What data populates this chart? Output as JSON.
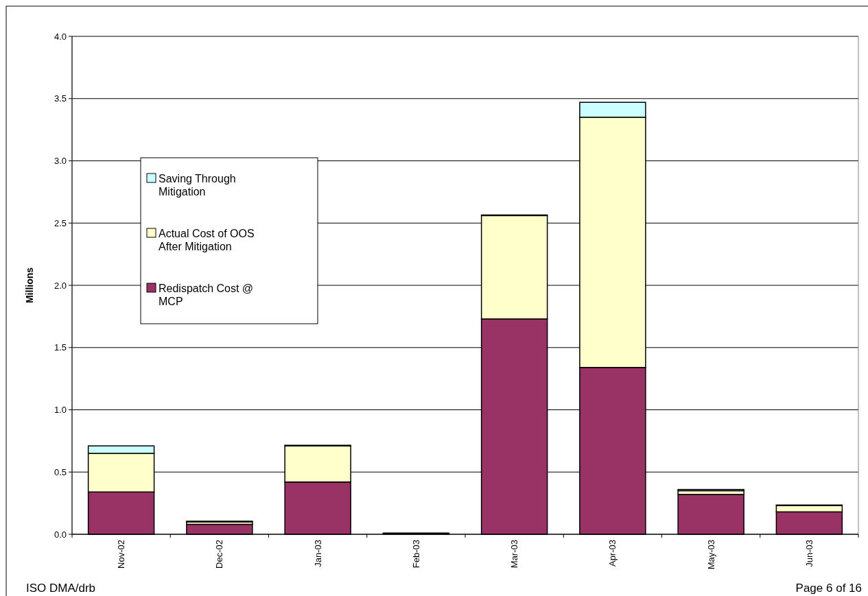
{
  "chart_data": {
    "type": "bar",
    "stacked": true,
    "ylabel": "Millions",
    "categories": [
      "Nov-02",
      "Dec-02",
      "Jan-03",
      "Feb-03",
      "Mar-03",
      "Apr-03",
      "May-03",
      "Jun-03"
    ],
    "series": [
      {
        "name": "Redispatch Cost @ MCP",
        "color": "#993366",
        "values": [
          0.34,
          0.08,
          0.42,
          0.01,
          1.73,
          1.34,
          0.32,
          0.18
        ]
      },
      {
        "name": "Actual Cost of OOS After Mitigation",
        "color": "#ffffcc",
        "values": [
          0.31,
          0.02,
          0.29,
          0,
          0.83,
          2.01,
          0.03,
          0.05
        ]
      },
      {
        "name": "Saving Through Mitigation",
        "color": "#ccffff",
        "values": [
          0.06,
          0.005,
          0.005,
          0,
          0.005,
          0.12,
          0.01,
          0.005
        ]
      }
    ],
    "ylim": [
      0,
      4
    ],
    "yticks": [
      {
        "value": 0,
        "label": "0.0"
      },
      {
        "value": 0.5,
        "label": "0.5"
      },
      {
        "value": 1,
        "label": "1.0"
      },
      {
        "value": 1.5,
        "label": "1.5"
      },
      {
        "value": 2,
        "label": "2.0"
      },
      {
        "value": 2.5,
        "label": "2.5"
      },
      {
        "value": 3,
        "label": "3.0"
      },
      {
        "value": 3.5,
        "label": "3.5"
      },
      {
        "value": 4,
        "label": "4.0"
      }
    ],
    "grid": "y",
    "legend": "left",
    "annotations": [
      "ISO DMA/drb",
      "Page 6 of 16"
    ]
  }
}
